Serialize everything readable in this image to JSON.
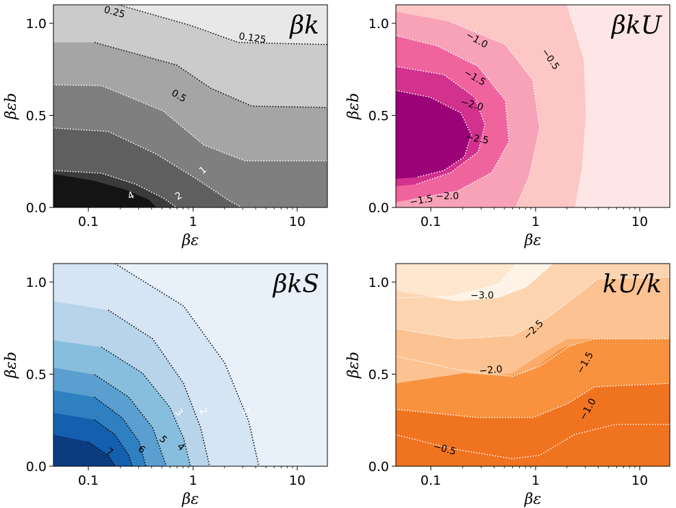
{
  "chart_data": [
    {
      "type": "contour",
      "title": "βk",
      "xlabel": "βε",
      "ylabel": "βε_b",
      "xscale": "log",
      "xlim": [
        0.05,
        20
      ],
      "ylim": [
        0,
        1.1
      ],
      "xticks": [
        "0.1",
        "1",
        "10"
      ],
      "yticks": [
        "0.0",
        "0.5",
        "1.0"
      ],
      "colormap": "greys",
      "line_color": "dark",
      "levels": [
        0.125,
        0.25,
        0.5,
        1,
        2,
        4
      ],
      "contour_labels": [
        "0.25",
        "0.125",
        "0.5",
        "1",
        "2",
        "4"
      ]
    },
    {
      "type": "contour",
      "title": "βk_U",
      "xlabel": "βε",
      "ylabel": "βε_b",
      "xscale": "log",
      "xlim": [
        0.05,
        20
      ],
      "ylim": [
        0,
        1.1
      ],
      "xticks": [
        "0.1",
        "1",
        "10"
      ],
      "yticks": [
        "0.0",
        "0.5",
        "1.0"
      ],
      "colormap": "pinks",
      "line_color": "white",
      "levels": [
        -2.5,
        -2.0,
        -1.5,
        -1.0,
        -0.5
      ],
      "contour_labels": [
        "−1.0",
        "−0.5",
        "−1.5",
        "−2.0",
        "−2.5",
        "−2.0",
        "−1.5"
      ]
    },
    {
      "type": "contour",
      "title": "βk_S",
      "xlabel": "βε",
      "ylabel": "βε_b",
      "xscale": "log",
      "xlim": [
        0.05,
        20
      ],
      "ylim": [
        0,
        1.1
      ],
      "xticks": [
        "0.1",
        "1",
        "10"
      ],
      "yticks": [
        "0.0",
        "0.5",
        "1.0"
      ],
      "colormap": "blues",
      "line_color": "dark",
      "levels": [
        1,
        2,
        3,
        4,
        5,
        6,
        7
      ],
      "contour_labels": [
        "1",
        "2",
        "3",
        "4",
        "5",
        "6",
        "7"
      ]
    },
    {
      "type": "contour",
      "title": "k_U/k",
      "xlabel": "βε",
      "ylabel": "βε_b",
      "xscale": "log",
      "xlim": [
        0.05,
        20
      ],
      "ylim": [
        0,
        1.1
      ],
      "xticks": [
        "0.1",
        "1",
        "10"
      ],
      "yticks": [
        "0.0",
        "0.5",
        "1.0"
      ],
      "colormap": "oranges",
      "line_color": "white",
      "levels": [
        -3.0,
        -2.5,
        -2.0,
        -1.5,
        -1.0,
        -0.5
      ],
      "contour_labels": [
        "−3.0",
        "−2.5",
        "−2.0",
        "−1.5",
        "−1.0",
        "−0.5"
      ]
    }
  ],
  "colors": {
    "greys": [
      "#141414",
      "#3b3b3b",
      "#5f5f5f",
      "#7f7f7f",
      "#a5a5a5",
      "#cbcbcb",
      "#e8e8e8"
    ],
    "pinks": [
      "#9b0277",
      "#d2318d",
      "#f0649e",
      "#f8a2b8",
      "#fcc7c5",
      "#fde6e5"
    ],
    "blues": [
      "#0c3b80",
      "#145fae",
      "#2f80c0",
      "#5a9fd0",
      "#88bedd",
      "#b7d4ea",
      "#d5e5f4",
      "#e8f0fa"
    ],
    "oranges": [
      "#f0731f",
      "#f8923f",
      "#fbac6a",
      "#fdc291",
      "#fdd4b0",
      "#fee6cf",
      "#fef3e6"
    ]
  }
}
